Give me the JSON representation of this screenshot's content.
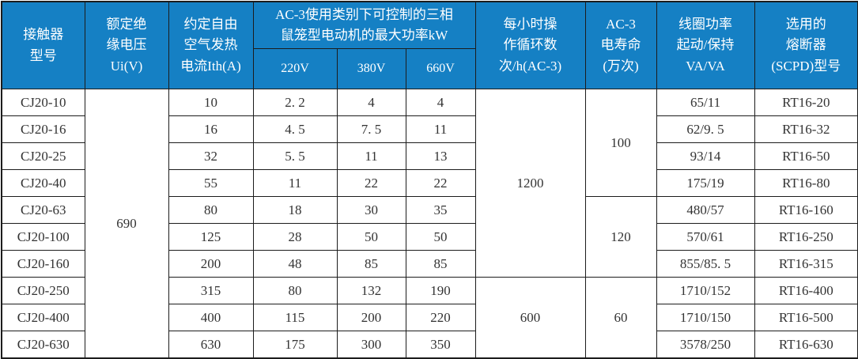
{
  "colors": {
    "header_bg": "#1580c4",
    "header_text": "#ffffff",
    "border": "#1c1c1c",
    "cell_text": "#333333",
    "page_bg": "#ffffff"
  },
  "table": {
    "headers": {
      "model": "接触器\n型号",
      "ui": "额定绝\n缘电压\nUi(V)",
      "ith": "约定自由\n空气发热\n电流Ith(A)",
      "ac3_power_group": "AC-3使用类别下可控制的三相\n鼠笼型电动机的最大功率kW",
      "v220": "220V",
      "v380": "380V",
      "v660": "660V",
      "cycles": "每小时操\n作循环数\n次/h(AC-3)",
      "life": "AC-3\n电寿命\n(万次)",
      "coil": "线圈功率\n起动/保持\nVA/VA",
      "fuse": "选用的\n熔断器\n(SCPD)型号"
    },
    "rows": [
      {
        "model": "CJ20-10",
        "ith": "10",
        "p220": "2. 2",
        "p380": "4",
        "p660": "4",
        "coil": "65/11",
        "fuse": "RT16-20"
      },
      {
        "model": "CJ20-16",
        "ith": "16",
        "p220": "4. 5",
        "p380": "7. 5",
        "p660": "11",
        "coil": "62/9. 5",
        "fuse": "RT16-32"
      },
      {
        "model": "CJ20-25",
        "ith": "32",
        "p220": "5. 5",
        "p380": "11",
        "p660": "13",
        "coil": "93/14",
        "fuse": "RT16-50"
      },
      {
        "model": "CJ20-40",
        "ith": "55",
        "p220": "11",
        "p380": "22",
        "p660": "22",
        "coil": "175/19",
        "fuse": "RT16-80"
      },
      {
        "model": "CJ20-63",
        "ith": "80",
        "p220": "18",
        "p380": "30",
        "p660": "35",
        "coil": "480/57",
        "fuse": "RT16-160"
      },
      {
        "model": "CJ20-100",
        "ith": "125",
        "p220": "28",
        "p380": "50",
        "p660": "50",
        "coil": "570/61",
        "fuse": "RT16-250"
      },
      {
        "model": "CJ20-160",
        "ith": "200",
        "p220": "48",
        "p380": "85",
        "p660": "85",
        "coil": "855/85. 5",
        "fuse": "RT16-315"
      },
      {
        "model": "CJ20-250",
        "ith": "315",
        "p220": "80",
        "p380": "132",
        "p660": "190",
        "coil": "1710/152",
        "fuse": "RT16-400"
      },
      {
        "model": "CJ20-400",
        "ith": "400",
        "p220": "115",
        "p380": "200",
        "p660": "220",
        "coil": "1710/150",
        "fuse": "RT16-500"
      },
      {
        "model": "CJ20-630",
        "ith": "630",
        "p220": "175",
        "p380": "300",
        "p660": "350",
        "coil": "3578/250",
        "fuse": "RT16-630"
      }
    ],
    "merged": {
      "ui": [
        {
          "value": "690",
          "start": 0,
          "span": 10
        }
      ],
      "cycles": [
        {
          "value": "1200",
          "start": 0,
          "span": 7
        },
        {
          "value": "600",
          "start": 7,
          "span": 3
        }
      ],
      "life": [
        {
          "value": "100",
          "start": 0,
          "span": 4
        },
        {
          "value": "120",
          "start": 4,
          "span": 3
        },
        {
          "value": "60",
          "start": 7,
          "span": 3
        }
      ]
    }
  }
}
